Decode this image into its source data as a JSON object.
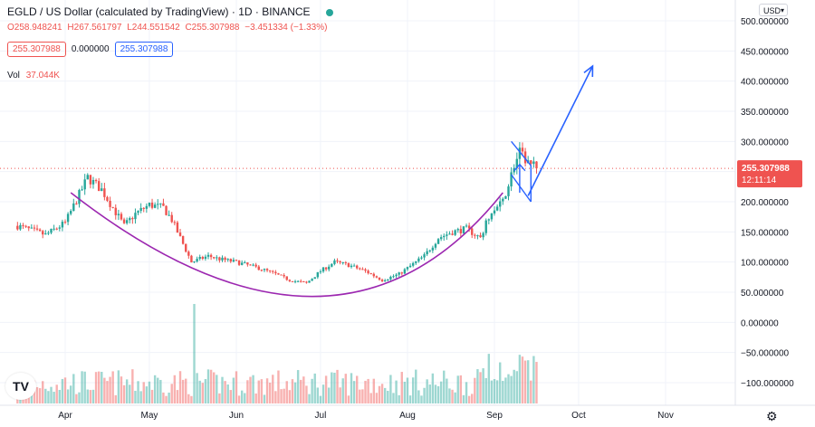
{
  "header": {
    "title": "EGLD / US Dollar (calculated by TradingView) · 1D · BINANCE",
    "ohlc": [
      "O258.948241",
      "H267.561797",
      "L244.551542",
      "C255.307988",
      "−3.451334 (−1.33%)"
    ],
    "input_values": [
      "255.307988",
      "0.000000",
      "255.307988"
    ],
    "volume_label": "Vol",
    "volume_value": "37.044K"
  },
  "currency": "USD",
  "logo_text": "TV",
  "icons": {
    "status": "green-dot-icon",
    "settings": "gear-icon",
    "dropdown": "chevron-down-icon"
  },
  "colors": {
    "up": "#26a69a",
    "down": "#ef5350",
    "arc": "#9c27b0",
    "projection": "#2962ff",
    "flag": "#2962ff",
    "price_label": "#ef5350"
  },
  "chart_data": {
    "type": "candlestick",
    "ylim": [
      -120,
      520
    ],
    "grid": true,
    "y_ticks": [
      "500.000000",
      "450.000000",
      "400.000000",
      "350.000000",
      "300.000000",
      "250.000000",
      "200.000000",
      "150.000000",
      "100.000000",
      "50.000000",
      "0.000000",
      "−50.000000",
      "−100.000000"
    ],
    "y_tick_values": [
      500,
      450,
      400,
      350,
      300,
      250,
      200,
      150,
      100,
      50,
      0,
      -50,
      -100
    ],
    "x_ticks": [
      "Apr",
      "May",
      "Jun",
      "Jul",
      "Aug",
      "Sep",
      "Oct",
      "Nov"
    ],
    "x_tick_days": [
      17,
      47,
      78,
      108,
      139,
      170,
      200,
      231
    ],
    "last_price": "255.307988",
    "last_price_value": 255.31,
    "countdown": "12:11:14",
    "close_series": {
      "days": [
        0,
        10,
        17,
        25,
        30,
        34,
        38,
        42,
        47,
        52,
        55,
        58,
        62,
        68,
        72,
        78,
        82,
        86,
        92,
        97,
        103,
        108,
        113,
        118,
        124,
        130,
        136,
        139,
        145,
        150,
        155,
        160,
        165,
        168,
        170,
        173,
        175,
        177,
        179,
        182,
        185
      ],
      "values": [
        160,
        145,
        165,
        240,
        220,
        190,
        160,
        180,
        195,
        190,
        170,
        140,
        100,
        110,
        105,
        100,
        95,
        90,
        80,
        70,
        65,
        85,
        100,
        95,
        85,
        70,
        80,
        90,
        110,
        140,
        150,
        155,
        140,
        175,
        185,
        200,
        230,
        260,
        280,
        265,
        255
      ]
    },
    "volume_scale": {
      "max_label": "",
      "note": ""
    },
    "cup_arc": {
      "start": [
        19,
        215
      ],
      "bottom": [
        105,
        43
      ],
      "end": [
        173,
        215
      ]
    },
    "flag": {
      "top_line": [
        [
          176,
          300
        ],
        [
          183,
          260
        ]
      ],
      "bottom_line": [
        [
          176,
          245
        ],
        [
          183,
          200
        ]
      ]
    },
    "projection": {
      "from": [
        182,
        210
      ],
      "to": [
        205,
        425
      ]
    },
    "flag_pole_arrow": {
      "from": [
        179,
        215
      ],
      "to": [
        179,
        262
      ]
    }
  }
}
